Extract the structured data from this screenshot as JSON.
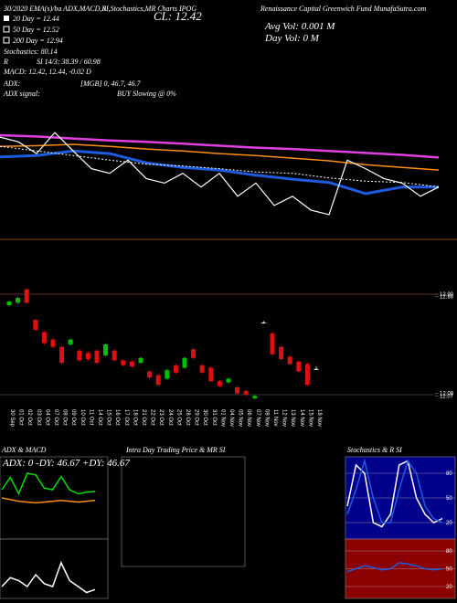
{
  "header": {
    "top_left": "30/2020 EMA(s)/ba ADX,MACD,R",
    "top_middle": "SI,Stochastics,MR Charts IPOG",
    "top_right": "Renaissance Capital Greenwich Fund MunafaSutra.com",
    "close": "CL: 12.42",
    "ma20": "20 Day = 12.44",
    "ma50": "50 Day = 12.52",
    "ma200": "200 Day = 12.94",
    "stochastics": "Stochastics: 80.14",
    "rsi_r": "R",
    "rsi": "SI 14/3: 38.39 / 60.98",
    "macd": "MACD: 12.42, 12.44, -0.02 D",
    "avg_vol": "Avg Vol: 0.001 M",
    "day_vol": "Day Vol: 0 M",
    "adx_label": "ADX:",
    "adx_values": "[MGB] 0, 46.7, 46.7",
    "adx_signal_label": "ADX signal:",
    "adx_signal": "BUY Slowing @ 0%"
  },
  "main_chart": {
    "ylim": [
      11.6,
      13.2
    ],
    "lines": [
      {
        "color": "#e040e0",
        "width": 2.5,
        "values": [
          12.95,
          12.93,
          12.9,
          12.87,
          12.85,
          12.82,
          12.79,
          12.76,
          12.74,
          12.71,
          12.68,
          12.65,
          12.61
        ]
      },
      {
        "color": "#ff8c1a",
        "width": 1.5,
        "values": [
          12.78,
          12.79,
          12.81,
          12.78,
          12.74,
          12.71,
          12.67,
          12.64,
          12.6,
          12.56,
          12.5,
          12.46,
          12.42
        ]
      },
      {
        "color": "#1e5be0",
        "width": 3,
        "values": [
          12.62,
          12.64,
          12.71,
          12.67,
          12.53,
          12.46,
          12.42,
          12.34,
          12.28,
          12.23,
          12.06,
          12.16,
          12.16
        ]
      },
      {
        "color": "#ffffff",
        "width": 1,
        "dashed": true,
        "values": [
          12.78,
          12.71,
          12.64,
          12.57,
          12.51,
          12.48,
          12.44,
          12.39,
          12.37,
          12.3,
          12.25,
          12.23,
          12.16
        ]
      },
      {
        "color": "#ffffff",
        "width": 1.2,
        "values": [
          12.92,
          12.85,
          12.67,
          12.99,
          12.71,
          12.44,
          12.37,
          12.57,
          12.29,
          12.22,
          12.37,
          12.16,
          12.37,
          12.02,
          12.22,
          11.88,
          12.02,
          11.81,
          11.74,
          12.57,
          12.44,
          12.29,
          12.22,
          12.02,
          12.16
        ]
      }
    ]
  },
  "price_chart": {
    "ylim": [
      12.02,
      12.96
    ],
    "up_color": "#00c000",
    "down_color": "#e01010",
    "flat_color": "#ffffff",
    "right_labels": [
      {
        "value": 12.9,
        "label": "12.90"
      },
      {
        "value": 12.88,
        "label": "12.88"
      },
      {
        "value": 12.09,
        "label": "12.09"
      },
      {
        "value": 12.07,
        "label": "12.07"
      }
    ],
    "candles": [
      {
        "open": 12.81,
        "high": 12.85,
        "low": 12.8,
        "close": 12.84
      },
      {
        "open": 12.83,
        "high": 12.88,
        "low": 12.82,
        "close": 12.87
      },
      {
        "open": 12.94,
        "high": 12.95,
        "low": 12.82,
        "close": 12.83
      },
      {
        "open": 12.69,
        "high": 12.7,
        "low": 12.6,
        "close": 12.61
      },
      {
        "open": 12.59,
        "high": 12.6,
        "low": 12.49,
        "close": 12.5
      },
      {
        "open": 12.53,
        "high": 12.54,
        "low": 12.46,
        "close": 12.47
      },
      {
        "open": 12.47,
        "high": 12.48,
        "low": 12.33,
        "close": 12.34
      },
      {
        "open": 12.49,
        "high": 12.54,
        "low": 12.48,
        "close": 12.53
      },
      {
        "open": 12.44,
        "high": 12.45,
        "low": 12.35,
        "close": 12.36
      },
      {
        "open": 12.42,
        "high": 12.43,
        "low": 12.36,
        "close": 12.37
      },
      {
        "open": 12.44,
        "high": 12.45,
        "low": 12.33,
        "close": 12.34
      },
      {
        "open": 12.4,
        "high": 12.5,
        "low": 12.39,
        "close": 12.49
      },
      {
        "open": 12.44,
        "high": 12.45,
        "low": 12.35,
        "close": 12.36
      },
      {
        "open": 12.36,
        "high": 12.37,
        "low": 12.31,
        "close": 12.32
      },
      {
        "open": 12.35,
        "high": 12.36,
        "low": 12.3,
        "close": 12.31
      },
      {
        "open": 12.34,
        "high": 12.39,
        "low": 12.33,
        "close": 12.38
      },
      {
        "open": 12.27,
        "high": 12.28,
        "low": 12.21,
        "close": 12.22
      },
      {
        "open": 12.24,
        "high": 12.25,
        "low": 12.15,
        "close": 12.16
      },
      {
        "open": 12.21,
        "high": 12.29,
        "low": 12.2,
        "close": 12.28
      },
      {
        "open": 12.32,
        "high": 12.33,
        "low": 12.25,
        "close": 12.26
      },
      {
        "open": 12.3,
        "high": 12.39,
        "low": 12.29,
        "close": 12.38
      },
      {
        "open": 12.45,
        "high": 12.46,
        "low": 12.37,
        "close": 12.38
      },
      {
        "open": 12.32,
        "high": 12.33,
        "low": 12.25,
        "close": 12.26
      },
      {
        "open": 12.3,
        "high": 12.31,
        "low": 12.18,
        "close": 12.19
      },
      {
        "open": 12.19,
        "high": 12.2,
        "low": 12.14,
        "close": 12.15
      },
      {
        "open": 12.18,
        "high": 12.22,
        "low": 12.17,
        "close": 12.21
      },
      {
        "open": 12.14,
        "high": 12.15,
        "low": 12.08,
        "close": 12.09
      },
      {
        "open": 12.11,
        "high": 12.12,
        "low": 12.07,
        "close": 12.08
      },
      {
        "open": 12.05,
        "high": 12.08,
        "low": 12.04,
        "close": 12.07
      },
      {
        "open": 12.67,
        "high": 12.68,
        "low": 12.66,
        "close": 12.67
      },
      {
        "open": 12.58,
        "high": 12.59,
        "low": 12.4,
        "close": 12.41
      },
      {
        "open": 12.47,
        "high": 12.48,
        "low": 12.36,
        "close": 12.37
      },
      {
        "open": 12.39,
        "high": 12.4,
        "low": 12.32,
        "close": 12.33
      },
      {
        "open": 12.35,
        "high": 12.36,
        "low": 12.26,
        "close": 12.27
      },
      {
        "open": 12.33,
        "high": 12.34,
        "low": 12.15,
        "close": 12.16
      },
      {
        "open": 12.29,
        "high": 12.31,
        "low": 12.28,
        "close": 12.29
      }
    ],
    "dates": [
      "30 Sep",
      "01 Oct",
      "02 Oct",
      "03 Oct",
      "04 Oct",
      "07 Oct",
      "08 Oct",
      "09 Oct",
      "10 Oct",
      "11 Oct",
      "14 Oct",
      "15 Oct",
      "16 Oct",
      "17 Oct",
      "18 Oct",
      "21 Oct",
      "22 Oct",
      "23 Oct",
      "24 Oct",
      "25 Oct",
      "28 Oct",
      "29 Oct",
      "30 Oct",
      "31 Oct",
      "01 Nov",
      "04 Nov",
      "05 Nov",
      "06 Nov",
      "07 Nov",
      "08 Nov",
      "11 Nov",
      "12 Nov",
      "13 Nov",
      "14 Nov",
      "15 Nov",
      "18 Nov"
    ]
  },
  "panels": {
    "adx_title": "ADX & MACD",
    "intraday_title": "Intra Day Trading Price & MR SI",
    "stoch_title": "Stochastics & R SI",
    "adx_readout": "ADX: 0 -DY: 46.67 +DY: 46.67",
    "adx": {
      "ylim": [
        0,
        100
      ],
      "lines": [
        {
          "color": "#00e000",
          "values": [
            60,
            75,
            55,
            80,
            78,
            62,
            60,
            76,
            60,
            55,
            57,
            58
          ]
        },
        {
          "color": "#ff8c1a",
          "values": [
            50,
            48,
            46,
            45,
            44,
            45,
            46,
            47,
            46,
            45,
            46,
            47
          ]
        }
      ]
    },
    "macd": {
      "ylim": [
        0,
        100
      ],
      "lines": [
        {
          "color": "#ffffff",
          "values": [
            20,
            35,
            30,
            20,
            40,
            25,
            20,
            60,
            30,
            20,
            10,
            15
          ]
        }
      ]
    },
    "stoch": {
      "ylim": [
        0,
        100
      ],
      "yticks": [
        20,
        50,
        80
      ],
      "lines": [
        {
          "color": "#ffffff",
          "values": [
            40,
            90,
            80,
            20,
            15,
            30,
            90,
            95,
            50,
            30,
            20,
            25
          ]
        },
        {
          "color": "#1e5be0",
          "values": [
            30,
            60,
            95,
            50,
            20,
            20,
            60,
            95,
            80,
            40,
            25,
            20
          ]
        }
      ]
    },
    "rsi": {
      "ylim": [
        0,
        100
      ],
      "yticks": [
        20,
        50,
        80
      ],
      "lines": [
        {
          "color": "#1e5be0",
          "values": [
            45,
            50,
            55,
            52,
            48,
            50,
            60,
            58,
            55,
            50,
            48,
            50
          ]
        }
      ]
    }
  }
}
